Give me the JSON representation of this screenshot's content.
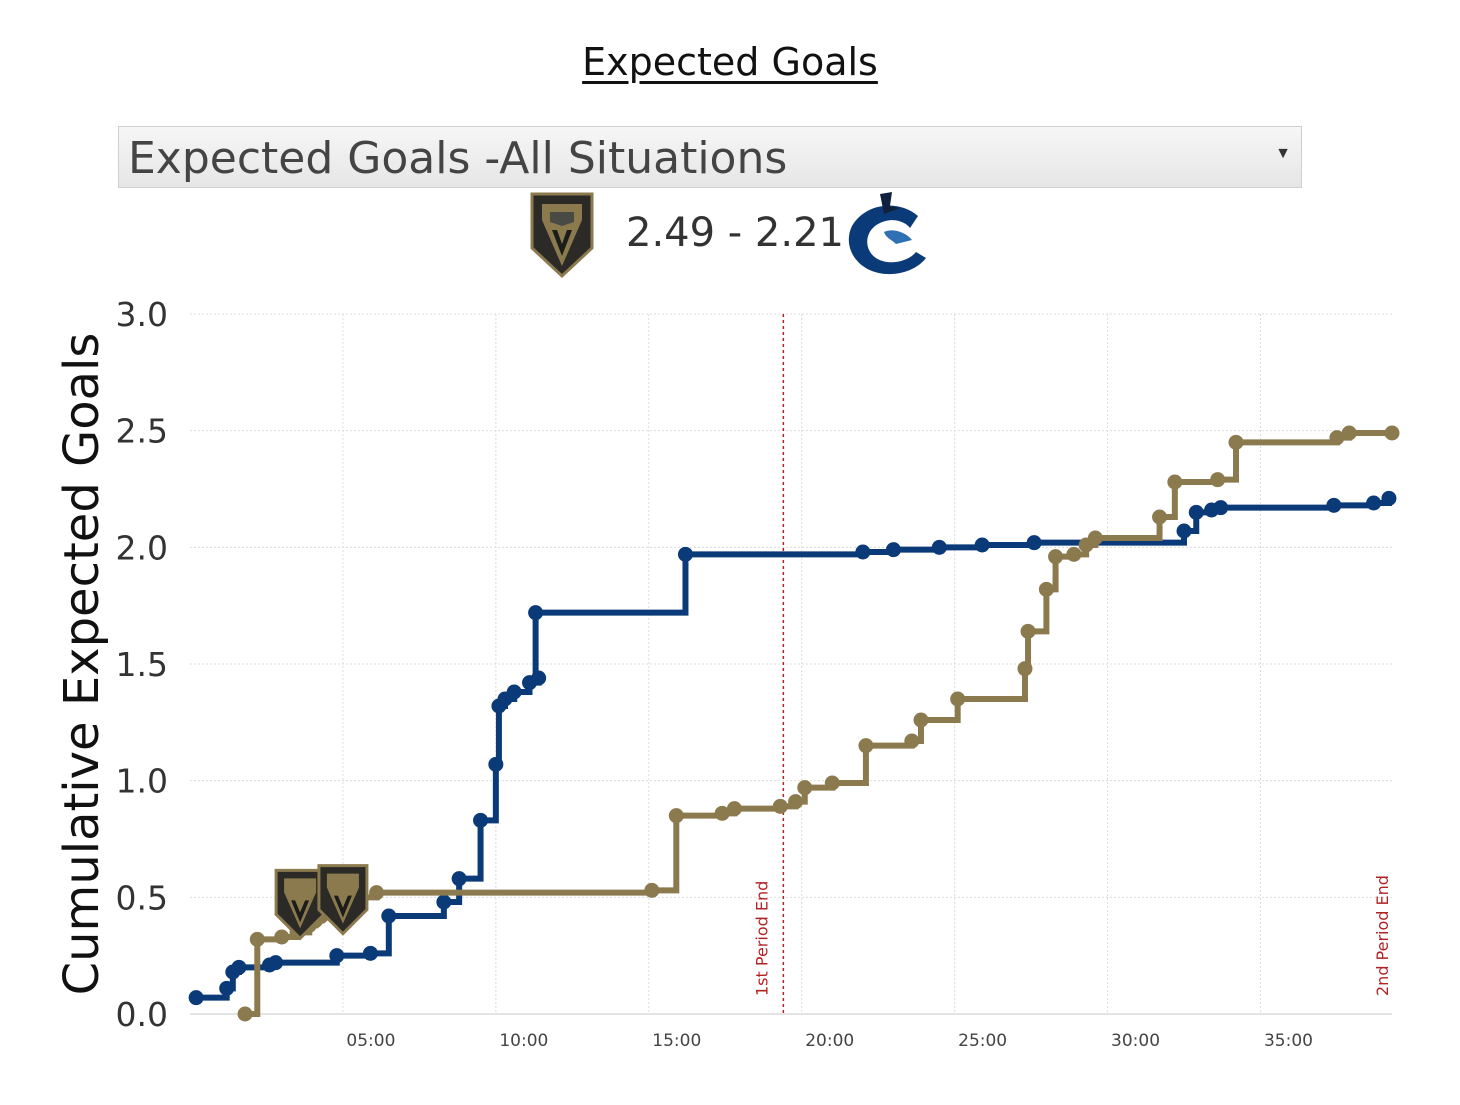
{
  "header": {
    "title": "Expected Goals",
    "dropdown_value": "Expected Goals -All Situations",
    "score": "2.49 - 2.21",
    "home_logo": "vegas-golden-knights-logo",
    "away_logo": "vancouver-canucks-logo"
  },
  "chart_data": {
    "type": "line",
    "title": "Expected Goals",
    "ylabel": "Cumulative Expected Goals",
    "xlabel": "",
    "xlim": [
      0,
      39.3
    ],
    "ylim": [
      0,
      3.0
    ],
    "grid": true,
    "y_ticks": [
      "0.0",
      "0.5",
      "1.0",
      "1.5",
      "2.0",
      "2.5",
      "3.0"
    ],
    "x_ticks": [
      {
        "v": 5,
        "label": "05:00"
      },
      {
        "v": 10,
        "label": "10:00"
      },
      {
        "v": 15,
        "label": "15:00"
      },
      {
        "v": 20,
        "label": "20:00"
      },
      {
        "v": 25,
        "label": "25:00"
      },
      {
        "v": 30,
        "label": "30:00"
      },
      {
        "v": 35,
        "label": "35:00"
      }
    ],
    "annotations": [
      {
        "x": 19.4,
        "label": "1st Period End"
      },
      {
        "x": 39.3,
        "label": "2nd Period End"
      }
    ],
    "series": [
      {
        "color": "#0b3a78",
        "end": 39.3,
        "points": [
          [
            0.2,
            0.07
          ],
          [
            1.2,
            0.11
          ],
          [
            1.4,
            0.18
          ],
          [
            1.6,
            0.2
          ],
          [
            2.6,
            0.21
          ],
          [
            2.8,
            0.22
          ],
          [
            4.8,
            0.25
          ],
          [
            5.9,
            0.26
          ],
          [
            6.5,
            0.42
          ],
          [
            8.3,
            0.48
          ],
          [
            8.8,
            0.58
          ],
          [
            9.5,
            0.83
          ],
          [
            10.0,
            1.07
          ],
          [
            10.1,
            1.32
          ],
          [
            10.3,
            1.35
          ],
          [
            10.6,
            1.38
          ],
          [
            11.1,
            1.42
          ],
          [
            11.4,
            1.44
          ],
          [
            11.3,
            1.72
          ],
          [
            16.2,
            1.97
          ],
          [
            22.0,
            1.98
          ],
          [
            23.0,
            1.99
          ],
          [
            24.5,
            2.0
          ],
          [
            25.9,
            2.01
          ],
          [
            27.6,
            2.02
          ],
          [
            32.5,
            2.07
          ],
          [
            32.9,
            2.15
          ],
          [
            33.4,
            2.16
          ],
          [
            33.7,
            2.17
          ],
          [
            37.4,
            2.18
          ],
          [
            38.7,
            2.19
          ],
          [
            39.2,
            2.21
          ]
        ]
      },
      {
        "color": "#8c7a4f",
        "end": 39.3,
        "points": [
          [
            1.8,
            0.0
          ],
          [
            2.2,
            0.32
          ],
          [
            3.0,
            0.33
          ],
          [
            3.5,
            0.35
          ],
          [
            3.9,
            0.38
          ],
          [
            4.1,
            0.4
          ],
          [
            4.3,
            0.42
          ],
          [
            4.7,
            0.44
          ],
          [
            4.9,
            0.46
          ],
          [
            5.2,
            0.48
          ],
          [
            5.6,
            0.5
          ],
          [
            6.1,
            0.52
          ],
          [
            15.1,
            0.53
          ],
          [
            15.9,
            0.85
          ],
          [
            17.4,
            0.86
          ],
          [
            17.8,
            0.88
          ],
          [
            19.3,
            0.89
          ],
          [
            19.8,
            0.91
          ],
          [
            20.1,
            0.97
          ],
          [
            21.0,
            0.99
          ],
          [
            22.1,
            1.15
          ],
          [
            23.6,
            1.17
          ],
          [
            23.9,
            1.26
          ],
          [
            25.1,
            1.35
          ],
          [
            27.3,
            1.48
          ],
          [
            27.4,
            1.64
          ],
          [
            28.0,
            1.82
          ],
          [
            28.3,
            1.96
          ],
          [
            28.9,
            1.97
          ],
          [
            29.3,
            2.01
          ],
          [
            29.6,
            2.04
          ],
          [
            31.7,
            2.13
          ],
          [
            32.2,
            2.28
          ],
          [
            33.6,
            2.29
          ],
          [
            34.2,
            2.45
          ],
          [
            37.5,
            2.47
          ],
          [
            37.9,
            2.49
          ],
          [
            39.3,
            2.49
          ]
        ]
      }
    ],
    "goal_markers": [
      {
        "x": 3.6,
        "y": 0.47,
        "icon": "vegas-golden-knights-logo"
      },
      {
        "x": 5.0,
        "y": 0.49,
        "icon": "vegas-golden-knights-logo"
      }
    ]
  }
}
